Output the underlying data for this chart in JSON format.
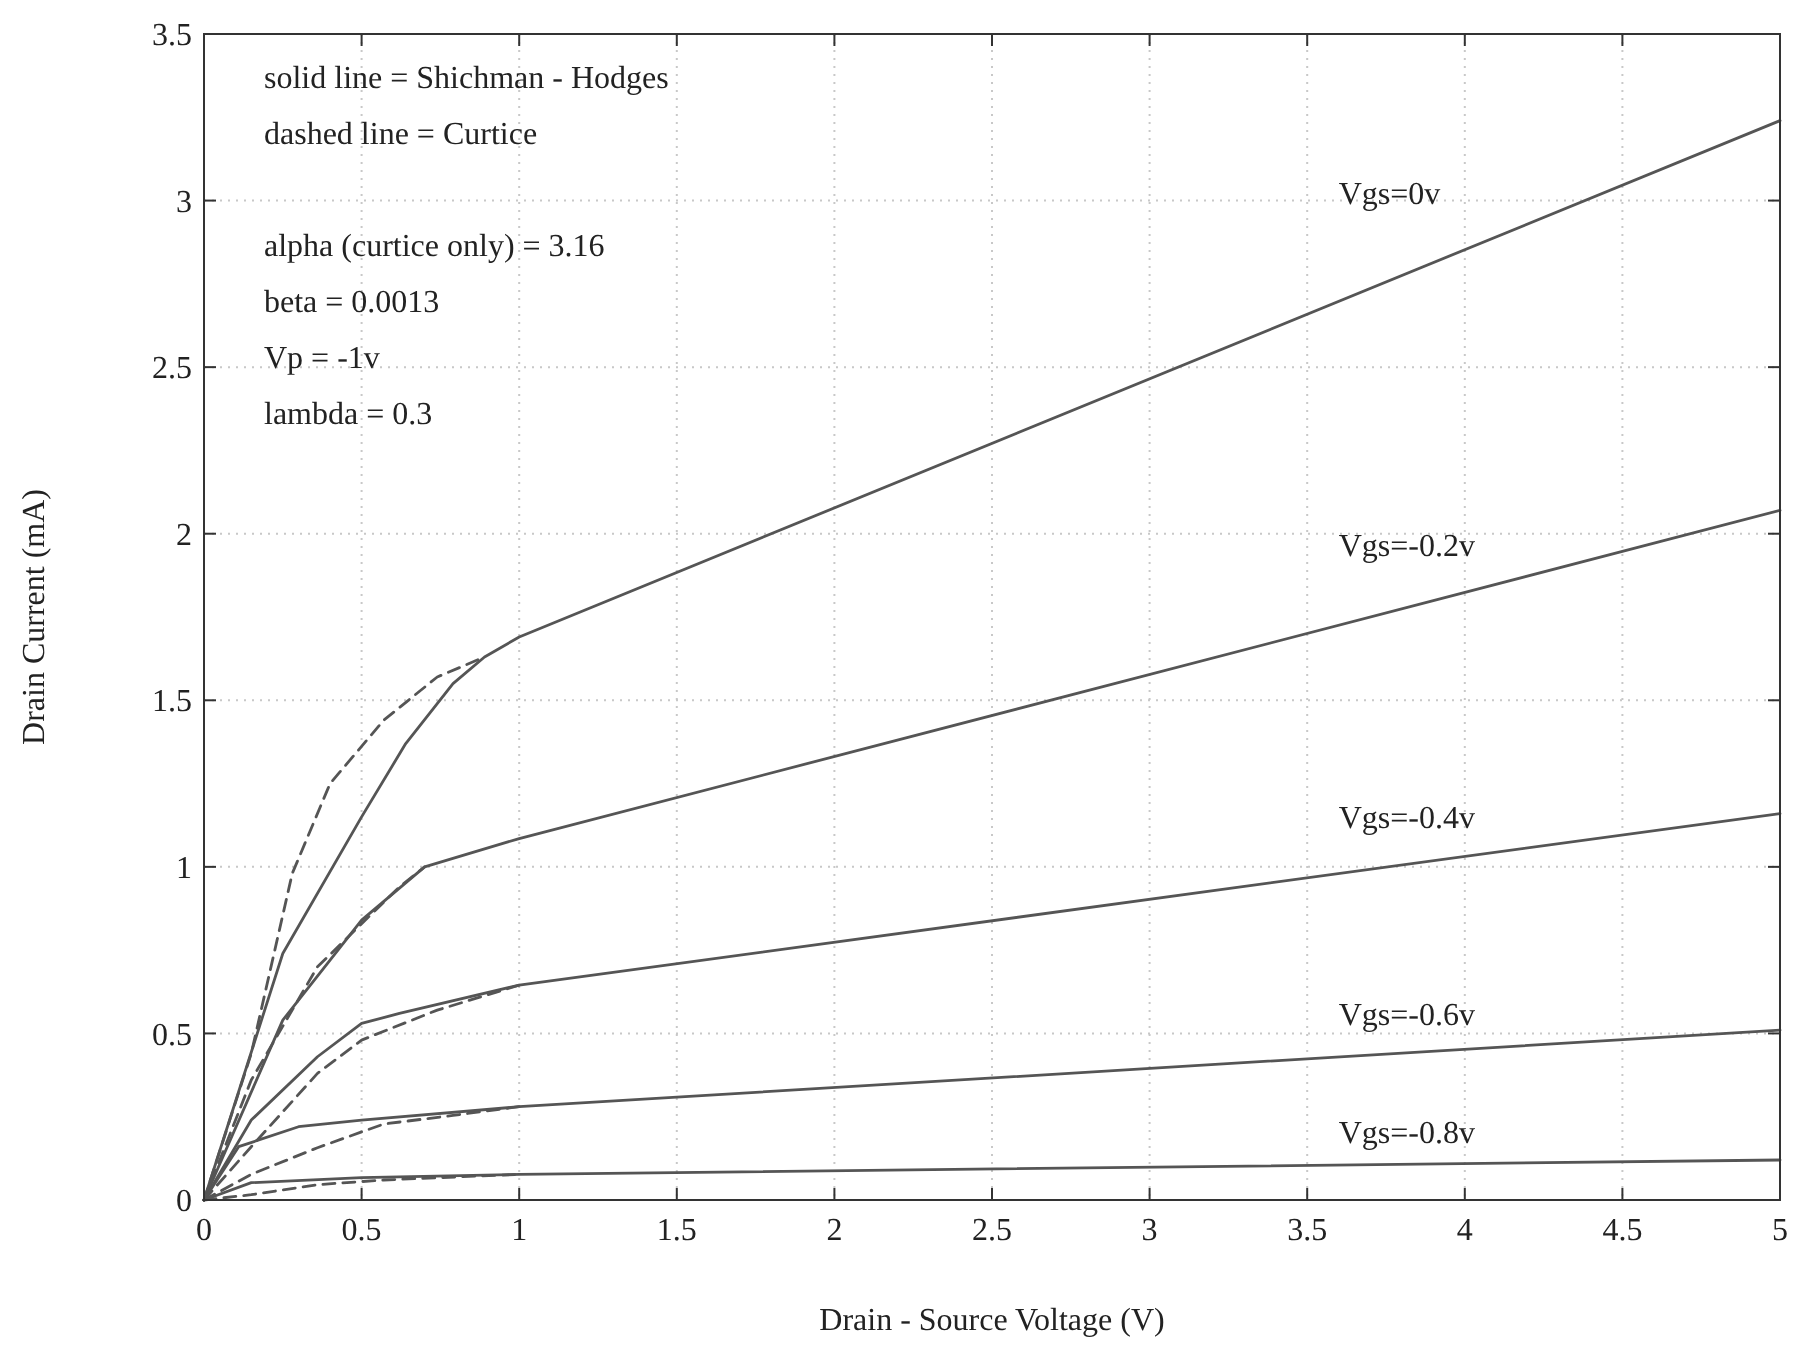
{
  "chart_data": {
    "type": "line",
    "xlabel": "Drain - Source Voltage (V)",
    "ylabel": "Drain Current (mA)",
    "xlim": [
      0,
      5
    ],
    "ylim": [
      0,
      3.5
    ],
    "xticks": [
      0,
      0.5,
      1,
      1.5,
      2,
      2.5,
      3,
      3.5,
      4,
      4.5,
      5
    ],
    "yticks": [
      0,
      0.5,
      1,
      1.5,
      2,
      2.5,
      3,
      3.5
    ],
    "grid": true,
    "marker": "none",
    "annotations": [
      "solid line = Shichman - Hodges",
      "dashed line = Curtice",
      "alpha (curtice only) = 3.16",
      "beta = 0.0013",
      "Vp = -1v",
      "lambda = 0.3"
    ],
    "series": [
      {
        "name": "Vgs=0v",
        "color": "#555555",
        "line_style": "solid",
        "x": [
          0,
          0.25,
          0.5,
          0.64,
          0.79,
          0.89,
          1,
          5
        ],
        "values": [
          0,
          0.74,
          1.15,
          1.37,
          1.55,
          1.63,
          1.69,
          3.24
        ]
      },
      {
        "color": "#555555",
        "line_style": "dashed",
        "x": [
          0,
          0.15,
          0.28,
          0.4,
          0.57,
          0.74,
          0.89
        ],
        "values": [
          0,
          0.44,
          0.98,
          1.25,
          1.44,
          1.57,
          1.63
        ]
      },
      {
        "name": "Vgs=-0.2v",
        "color": "#555555",
        "line_style": "solid",
        "x": [
          0,
          0.25,
          0.5,
          0.7,
          1,
          5
        ],
        "values": [
          0,
          0.54,
          0.84,
          1.0,
          1.085,
          2.07
        ]
      },
      {
        "color": "#555555",
        "line_style": "dashed",
        "x": [
          0,
          0.15,
          0.36,
          0.62,
          0.7
        ],
        "values": [
          0,
          0.36,
          0.7,
          0.94,
          1.0
        ]
      },
      {
        "name": "Vgs=-0.4v",
        "color": "#555555",
        "line_style": "solid",
        "x": [
          0,
          0.15,
          0.36,
          0.5,
          0.62,
          1,
          5
        ],
        "values": [
          0,
          0.24,
          0.43,
          0.53,
          0.56,
          0.645,
          1.16
        ]
      },
      {
        "color": "#555555",
        "line_style": "dashed",
        "x": [
          0,
          0.15,
          0.36,
          0.5,
          0.74,
          1
        ],
        "values": [
          0,
          0.16,
          0.38,
          0.48,
          0.57,
          0.645
        ]
      },
      {
        "name": "Vgs=-0.6v",
        "color": "#555555",
        "line_style": "solid",
        "x": [
          0,
          0.11,
          0.3,
          0.5,
          1,
          5
        ],
        "values": [
          0,
          0.16,
          0.22,
          0.24,
          0.28,
          0.51
        ]
      },
      {
        "color": "#555555",
        "line_style": "dashed",
        "x": [
          0,
          0.15,
          0.36,
          0.57,
          0.79,
          1
        ],
        "values": [
          0,
          0.077,
          0.157,
          0.228,
          0.254,
          0.28
        ]
      },
      {
        "name": "Vgs=-0.8v",
        "color": "#555555",
        "line_style": "solid",
        "x": [
          0,
          0.15,
          0.5,
          1,
          5
        ],
        "values": [
          0,
          0.052,
          0.067,
          0.077,
          0.12
        ]
      },
      {
        "color": "#555555",
        "line_style": "dashed",
        "x": [
          0,
          0.15,
          0.36,
          0.57,
          1
        ],
        "values": [
          0,
          0.016,
          0.046,
          0.06,
          0.077
        ]
      }
    ]
  }
}
